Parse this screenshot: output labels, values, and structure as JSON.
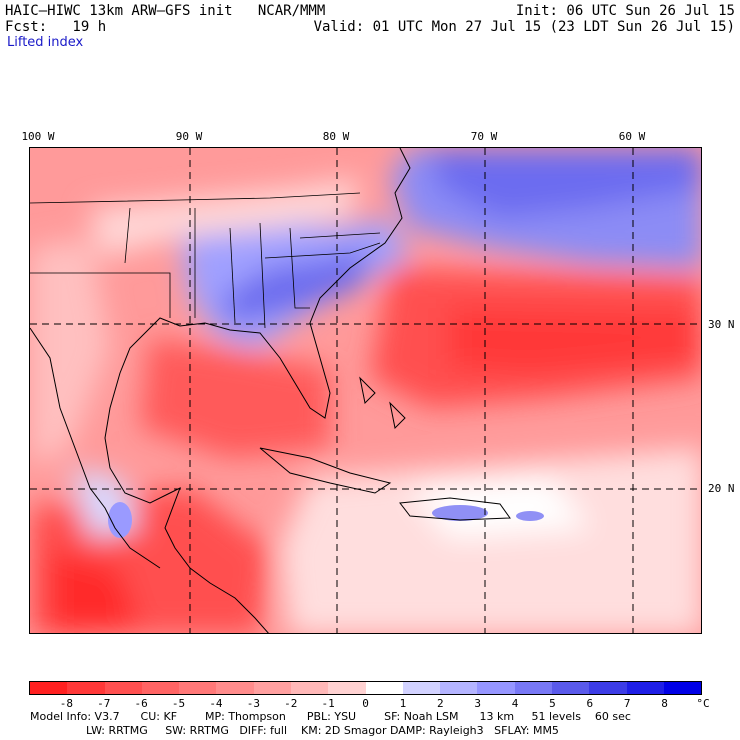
{
  "header": {
    "line1_left": "HAIC–HIWC 13km ARW–GFS init   NCAR/MMM",
    "line1_right": "Init: 06 UTC Sun 26 Jul 15",
    "line2_left": "Fcst:   19 h",
    "line2_right": "Valid: 01 UTC Mon 27 Jul 15 (23 LDT Sun 26 Jul 15)",
    "field": "Lifted index"
  },
  "axes": {
    "lon_labels": [
      "100 W",
      "90 W",
      "80 W",
      "70 W",
      "60 W"
    ],
    "lat_labels": [
      "30 N",
      "20 N"
    ]
  },
  "colorbar": {
    "ticks": [
      "-8",
      "-7",
      "-6",
      "-5",
      "-4",
      "-3",
      "-2",
      "-1",
      "0",
      "1",
      "2",
      "3",
      "4",
      "5",
      "6",
      "7",
      "8"
    ],
    "unit": "°C",
    "colors": [
      "#ff2020",
      "#ff3838",
      "#ff5050",
      "#ff6464",
      "#ff7878",
      "#ff8c8c",
      "#ffa0a0",
      "#ffb8b8",
      "#ffd2d2",
      "#ffffff",
      "#d2d2ff",
      "#b4b4ff",
      "#9696ff",
      "#7878f5",
      "#5a5aeb",
      "#3c3ce6",
      "#1e1ee6",
      "#0000e6"
    ]
  },
  "footer": {
    "line1": "Model Info: V3.7      CU: KF        MP: Thompson      PBL: YSU        SF: Noah LSM      13 km     51 levels    60 sec",
    "line2": "                LW: RRTMG     SW: RRTMG   DIFF: full    KM: 2D Smagor DAMP: Rayleigh3   SFLAY: MM5"
  }
}
